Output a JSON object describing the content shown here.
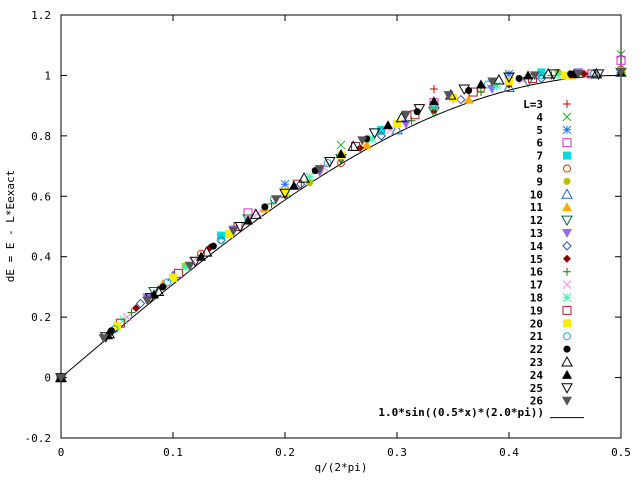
{
  "chart_data": {
    "type": "scatter",
    "xlabel": "q/(2*pi)",
    "ylabel": "dE = E - L*Eexact",
    "xlim": [
      0,
      0.5
    ],
    "ylim": [
      -0.2,
      1.2
    ],
    "x_ticks": [
      "0",
      "0.1",
      "0.2",
      "0.3",
      "0.4",
      "0.5"
    ],
    "y_ticks": [
      "-0.2",
      "0",
      "0.2",
      "0.4",
      "0.6",
      "0.8",
      "1",
      "1.2"
    ],
    "grid": false,
    "legend_position": "right",
    "curve": {
      "name": "1.0*sin((0.5*x)*(2.0*pi))",
      "color": "#000000",
      "domain": [
        0,
        0.5
      ]
    },
    "series": [
      {
        "name": "L=3",
        "color": "#cc0000",
        "marker": "plus",
        "x": [
          0,
          0.333
        ],
        "y": [
          0,
          0.955
        ]
      },
      {
        "name": "4",
        "color": "#22aa22",
        "marker": "cross",
        "x": [
          0,
          0.25,
          0.5
        ],
        "y": [
          0,
          0.77,
          1.07
        ]
      },
      {
        "name": "5",
        "color": "#1e6fff",
        "marker": "star",
        "x": [
          0,
          0.2,
          0.4
        ],
        "y": [
          0,
          0.64,
          1.005
        ]
      },
      {
        "name": "6",
        "color": "#cc33cc",
        "marker": "square",
        "x": [
          0,
          0.167,
          0.333,
          0.5
        ],
        "y": [
          0,
          0.545,
          0.91,
          1.05
        ]
      },
      {
        "name": "7",
        "color": "#00dddd",
        "marker": "fsquare",
        "x": [
          0,
          0.143,
          0.286,
          0.429
        ],
        "y": [
          0,
          0.47,
          0.82,
          1.01
        ]
      },
      {
        "name": "8",
        "color": "#cc4400",
        "marker": "circle",
        "x": [
          0,
          0.125,
          0.25,
          0.375,
          0.5
        ],
        "y": [
          0,
          0.41,
          0.71,
          0.955,
          1.02
        ]
      },
      {
        "name": "9",
        "color": "#bbbb00",
        "marker": "fcircle",
        "x": [
          0,
          0.111,
          0.222,
          0.333,
          0.444
        ],
        "y": [
          0,
          0.37,
          0.645,
          0.885,
          1.01
        ]
      },
      {
        "name": "10",
        "color": "#2266cc",
        "marker": "triangle",
        "x": [
          0,
          0.1,
          0.2,
          0.3,
          0.4,
          0.5
        ],
        "y": [
          0,
          0.335,
          0.61,
          0.82,
          0.96,
          1.01
        ]
      },
      {
        "name": "11",
        "color": "#ffaa00",
        "marker": "ftriangle",
        "x": [
          0,
          0.091,
          0.182,
          0.273,
          0.364,
          0.455
        ],
        "y": [
          0,
          0.31,
          0.56,
          0.77,
          0.92,
          1.0
        ]
      },
      {
        "name": "12",
        "color": "#006633",
        "marker": "dtriangle",
        "x": [
          0,
          0.083,
          0.167,
          0.25,
          0.333,
          0.417,
          0.5
        ],
        "y": [
          0,
          0.285,
          0.525,
          0.725,
          0.88,
          0.98,
          1.01
        ]
      },
      {
        "name": "13",
        "color": "#9966ff",
        "marker": "fdtriangle",
        "x": [
          0,
          0.077,
          0.154,
          0.231,
          0.308,
          0.385,
          0.462
        ],
        "y": [
          0,
          0.265,
          0.49,
          0.68,
          0.84,
          0.955,
          1.01
        ]
      },
      {
        "name": "14",
        "color": "#2255aa",
        "marker": "diamond",
        "x": [
          0,
          0.071,
          0.143,
          0.214,
          0.286,
          0.357,
          0.429,
          0.5
        ],
        "y": [
          0,
          0.245,
          0.455,
          0.64,
          0.8,
          0.92,
          0.99,
          1.01
        ]
      },
      {
        "name": "15",
        "color": "#880000",
        "marker": "fdiamond",
        "x": [
          0,
          0.067,
          0.133,
          0.2,
          0.267,
          0.333,
          0.4,
          0.467
        ],
        "y": [
          0,
          0.23,
          0.43,
          0.605,
          0.76,
          0.885,
          0.97,
          1.005
        ]
      },
      {
        "name": "16",
        "color": "#227700",
        "marker": "plus",
        "x": [
          0,
          0.063,
          0.125,
          0.188,
          0.25,
          0.313,
          0.375,
          0.438,
          0.5
        ],
        "y": [
          0,
          0.215,
          0.405,
          0.575,
          0.725,
          0.85,
          0.945,
          1.0,
          1.01
        ]
      },
      {
        "name": "17",
        "color": "#ff88ee",
        "marker": "cross",
        "x": [
          0,
          0.059,
          0.118,
          0.176,
          0.235,
          0.294,
          0.353,
          0.412,
          0.471
        ],
        "y": [
          0,
          0.2,
          0.385,
          0.545,
          0.695,
          0.82,
          0.92,
          0.985,
          1.005
        ]
      },
      {
        "name": "18",
        "color": "#33ffaa",
        "marker": "star",
        "x": [
          0,
          0.056,
          0.111,
          0.167,
          0.222,
          0.278,
          0.333,
          0.389,
          0.444,
          0.5
        ],
        "y": [
          0,
          0.19,
          0.365,
          0.52,
          0.665,
          0.79,
          0.895,
          0.965,
          1.0,
          1.01
        ]
      },
      {
        "name": "19",
        "color": "#aa2233",
        "marker": "square",
        "x": [
          0,
          0.053,
          0.105,
          0.158,
          0.211,
          0.263,
          0.316,
          0.368,
          0.421,
          0.474
        ],
        "y": [
          0,
          0.18,
          0.345,
          0.5,
          0.64,
          0.765,
          0.87,
          0.945,
          0.99,
          1.005
        ]
      },
      {
        "name": "20",
        "color": "#ffee00",
        "marker": "fsquare",
        "x": [
          0,
          0.05,
          0.1,
          0.15,
          0.2,
          0.25,
          0.3,
          0.35,
          0.4,
          0.45,
          0.5
        ],
        "y": [
          0,
          0.17,
          0.33,
          0.475,
          0.615,
          0.735,
          0.84,
          0.925,
          0.98,
          1.0,
          1.01
        ]
      },
      {
        "name": "21",
        "color": "#22aacc",
        "marker": "circle",
        "x": [
          0,
          0.048,
          0.095,
          0.143,
          0.19,
          0.238,
          0.286,
          0.333,
          0.381,
          0.429,
          0.476
        ],
        "y": [
          0,
          0.16,
          0.315,
          0.455,
          0.59,
          0.71,
          0.815,
          0.905,
          0.97,
          1.0,
          1.005
        ]
      },
      {
        "name": "22",
        "color": "#000000",
        "marker": "fcircle",
        "x": [
          0,
          0.045,
          0.091,
          0.136,
          0.182,
          0.227,
          0.273,
          0.318,
          0.364,
          0.409,
          0.455,
          0.5
        ],
        "y": [
          0,
          0.155,
          0.3,
          0.435,
          0.565,
          0.685,
          0.79,
          0.88,
          0.95,
          0.99,
          1.005,
          1.01
        ]
      },
      {
        "name": "23",
        "color": "#000000",
        "marker": "triangle",
        "x": [
          0,
          0.043,
          0.087,
          0.13,
          0.174,
          0.217,
          0.261,
          0.304,
          0.348,
          0.391,
          0.435,
          0.478
        ],
        "y": [
          0,
          0.145,
          0.285,
          0.415,
          0.54,
          0.66,
          0.765,
          0.86,
          0.935,
          0.985,
          1.005,
          1.005
        ]
      },
      {
        "name": "24",
        "color": "#000000",
        "marker": "ftriangle",
        "x": [
          0,
          0.042,
          0.083,
          0.125,
          0.167,
          0.208,
          0.25,
          0.292,
          0.333,
          0.375,
          0.417,
          0.458,
          0.5
        ],
        "y": [
          0,
          0.14,
          0.275,
          0.4,
          0.52,
          0.635,
          0.74,
          0.835,
          0.915,
          0.97,
          1.0,
          1.005,
          1.01
        ]
      },
      {
        "name": "25",
        "color": "#000000",
        "marker": "dtriangle",
        "x": [
          0,
          0.04,
          0.08,
          0.12,
          0.16,
          0.2,
          0.24,
          0.28,
          0.32,
          0.36,
          0.4,
          0.44,
          0.48
        ],
        "y": [
          0,
          0.135,
          0.265,
          0.385,
          0.5,
          0.61,
          0.715,
          0.81,
          0.89,
          0.955,
          0.995,
          1.005,
          1.005
        ]
      },
      {
        "name": "26",
        "color": "#555555",
        "marker": "fdtriangle",
        "x": [
          0,
          0.038,
          0.077,
          0.115,
          0.154,
          0.192,
          0.231,
          0.269,
          0.308,
          0.346,
          0.385,
          0.423,
          0.462,
          0.5
        ],
        "y": [
          0,
          0.13,
          0.255,
          0.37,
          0.485,
          0.59,
          0.69,
          0.785,
          0.87,
          0.935,
          0.98,
          1.0,
          1.005,
          1.01
        ]
      }
    ]
  }
}
